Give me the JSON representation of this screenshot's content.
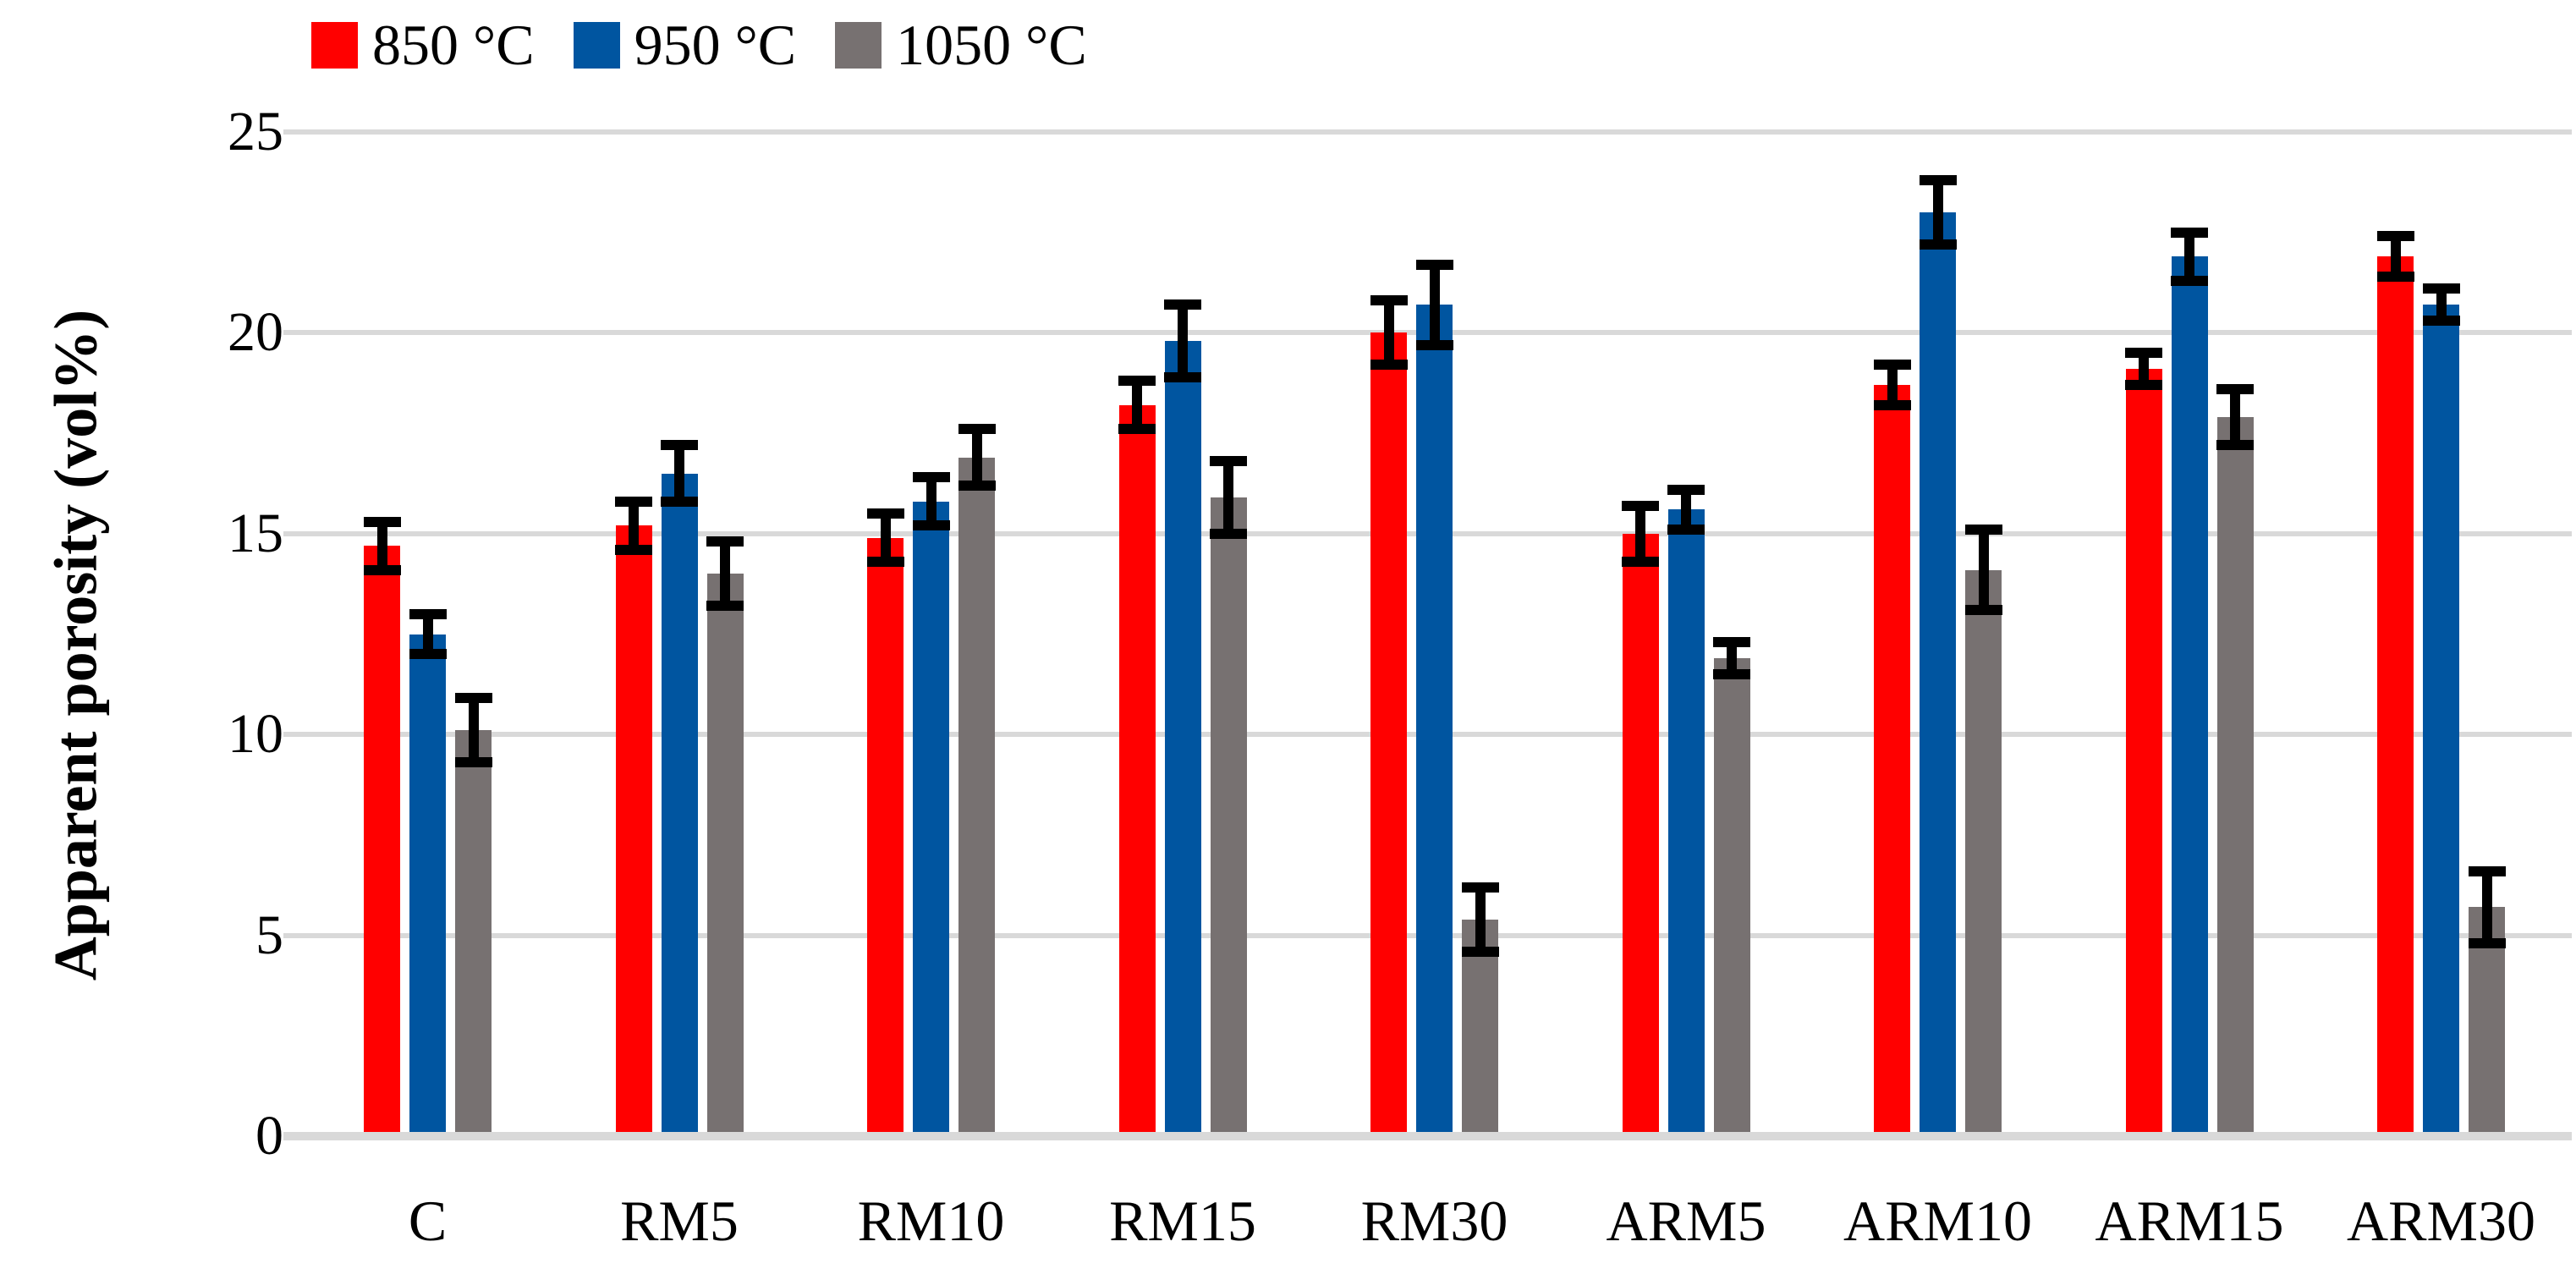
{
  "chart_data": {
    "type": "bar",
    "title": "",
    "xlabel": "",
    "ylabel": "Apparent porosity (vol%)",
    "ylim": [
      0,
      25
    ],
    "yticks": [
      0,
      5,
      10,
      15,
      20,
      25
    ],
    "y_tick_labels": [
      "0",
      "5",
      "10",
      "15",
      "20",
      "25"
    ],
    "grid": true,
    "legend_position": "top-left",
    "error_bars": true,
    "categories": [
      "C",
      "RM5",
      "RM10",
      "RM15",
      "RM30",
      "ARM5",
      "ARM10",
      "ARM15",
      "ARM30"
    ],
    "series": [
      {
        "name": "850 °C",
        "color": "#FF0000",
        "values": [
          14.7,
          15.2,
          14.9,
          18.2,
          20.0,
          15.0,
          18.7,
          19.1,
          21.9
        ],
        "errors": [
          0.6,
          0.6,
          0.6,
          0.6,
          0.8,
          0.7,
          0.5,
          0.4,
          0.5
        ]
      },
      {
        "name": "950 °C",
        "color": "#0055A0",
        "values": [
          12.5,
          16.5,
          15.8,
          19.8,
          20.7,
          15.6,
          23.0,
          21.9,
          20.7
        ],
        "errors": [
          0.5,
          0.7,
          0.6,
          0.9,
          1.0,
          0.5,
          0.8,
          0.6,
          0.4
        ]
      },
      {
        "name": "1050 °C",
        "color": "#777171",
        "values": [
          10.1,
          14.0,
          16.9,
          15.9,
          5.4,
          11.9,
          14.1,
          17.9,
          5.7
        ],
        "errors": [
          0.8,
          0.8,
          0.7,
          0.9,
          0.8,
          0.4,
          1.0,
          0.7,
          0.9
        ]
      }
    ],
    "colors": {
      "gridline": "#D9D9D9",
      "axis_line": "#D9D9D9",
      "error_bar": "#000000",
      "background": "#FFFFFF"
    }
  }
}
